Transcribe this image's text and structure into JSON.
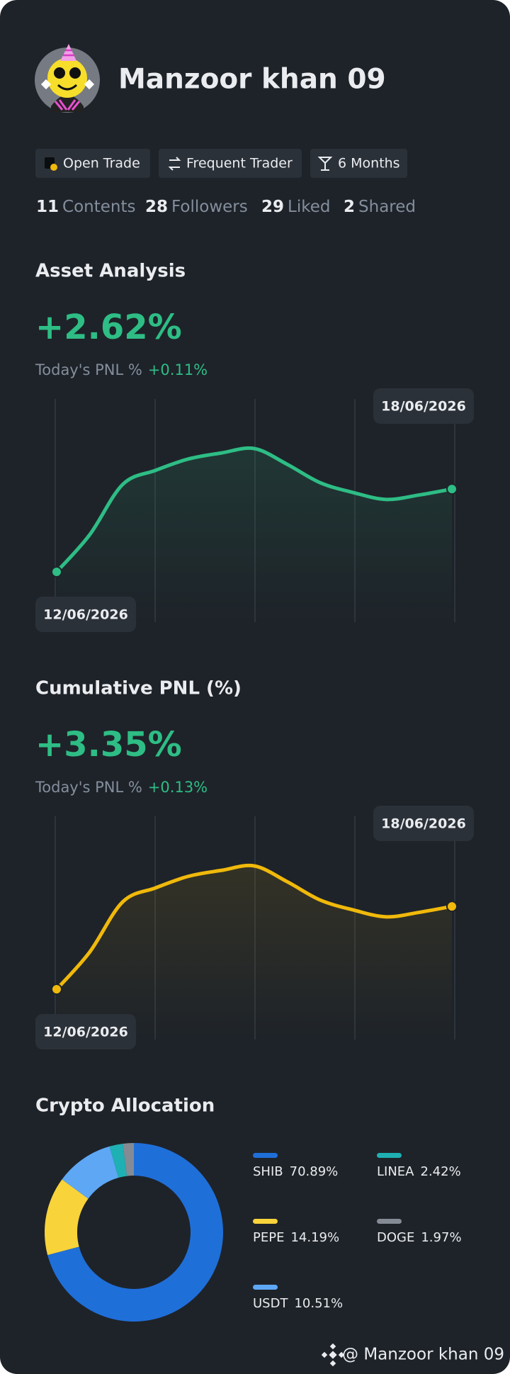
{
  "profile": {
    "name": "Manzoor khan 09",
    "badges": [
      "Open Trade",
      "Frequent Trader",
      "6 Months"
    ],
    "stats": [
      {
        "value": "11",
        "label": "Contents"
      },
      {
        "value": "28",
        "label": "Followers"
      },
      {
        "value": "29",
        "label": "Liked"
      },
      {
        "value": "2",
        "label": "Shared"
      }
    ]
  },
  "asset_analysis": {
    "title": "Asset Analysis",
    "value": "+2.62%",
    "today_label": "Today's PNL %",
    "today_value": "+0.11%",
    "chart": {
      "type": "line",
      "color": "#2ebd85",
      "categories": [
        "12/06/2026",
        null,
        null,
        null,
        null,
        null,
        null,
        null,
        null,
        null,
        null,
        null,
        "18/06/2026"
      ],
      "values": [
        0,
        1.17,
        2.76,
        3.21,
        3.57,
        3.76,
        3.9,
        3.4,
        2.82,
        2.51,
        2.29,
        2.43,
        2.62
      ]
    }
  },
  "cumulative_pnl": {
    "title": "Cumulative PNL (%)",
    "value": "+3.35%",
    "today_label": "Today's PNL %",
    "today_value": "+0.13%",
    "chart": {
      "type": "line",
      "color": "#f0b90b",
      "categories": [
        "12/06/2026",
        null,
        null,
        null,
        null,
        null,
        null,
        null,
        null,
        null,
        null,
        null,
        "18/06/2026"
      ],
      "values": [
        0,
        1.5,
        3.53,
        4.1,
        4.57,
        4.81,
        4.99,
        4.35,
        3.61,
        3.21,
        2.93,
        3.11,
        3.35
      ]
    }
  },
  "crypto_allocation": {
    "title": "Crypto Allocation",
    "chart": {
      "type": "pie",
      "categories": [
        "SHIB",
        "PEPE",
        "USDT",
        "LINEA",
        "DOGE"
      ],
      "values": [
        70.89,
        14.19,
        10.51,
        2.42,
        1.97
      ],
      "value_labels": [
        "70.89%",
        "14.19%",
        "10.51%",
        "2.42%",
        "1.97%"
      ],
      "colors": [
        "#1f6fd9",
        "#f8d33a",
        "#5ea7f5",
        "#1fb0b4",
        "#858b94"
      ]
    }
  },
  "footer": {
    "handle": "@ Manzoor khan 09"
  }
}
